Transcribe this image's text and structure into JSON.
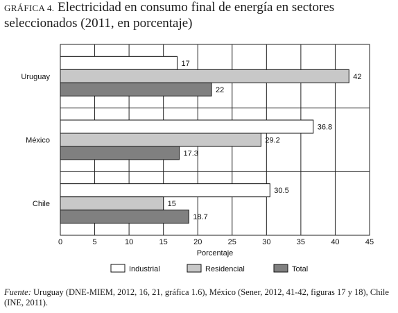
{
  "title": {
    "prefix": "GRÁFICA 4.",
    "text": "Electricidad en consumo final de energía en sectores seleccionados (2011, en porcentaje)"
  },
  "source": {
    "label": "Fuente:",
    "text": "Uruguay (DNE-MIEM, 2012, 16, 21, gráfica 1.6), México (Sener, 2012, 41-42, figuras 17 y 18), Chile (INE, 2011)."
  },
  "chart_data": {
    "type": "bar",
    "orientation": "horizontal",
    "categories": [
      "Uruguay",
      "México",
      "Chile"
    ],
    "series": [
      {
        "name": "Industrial",
        "color": "#ffffff",
        "values": [
          17,
          36.8,
          30.5
        ],
        "labels": [
          "17",
          "36.8",
          "30.5"
        ]
      },
      {
        "name": "Residencial",
        "color": "#c8c8c8",
        "values": [
          42,
          29.2,
          15
        ],
        "labels": [
          "42",
          "29.2",
          "15"
        ]
      },
      {
        "name": "Total",
        "color": "#808080",
        "values": [
          22,
          17.3,
          18.7
        ],
        "labels": [
          "22",
          "17.3",
          "18.7"
        ]
      }
    ],
    "xlabel": "Porcentaje",
    "xlim": [
      0,
      45
    ],
    "xticks": [
      "0",
      "5",
      "10",
      "15",
      "20",
      "25",
      "30",
      "35",
      "40",
      "45"
    ],
    "grid": "vertical",
    "legend": "bottom"
  }
}
